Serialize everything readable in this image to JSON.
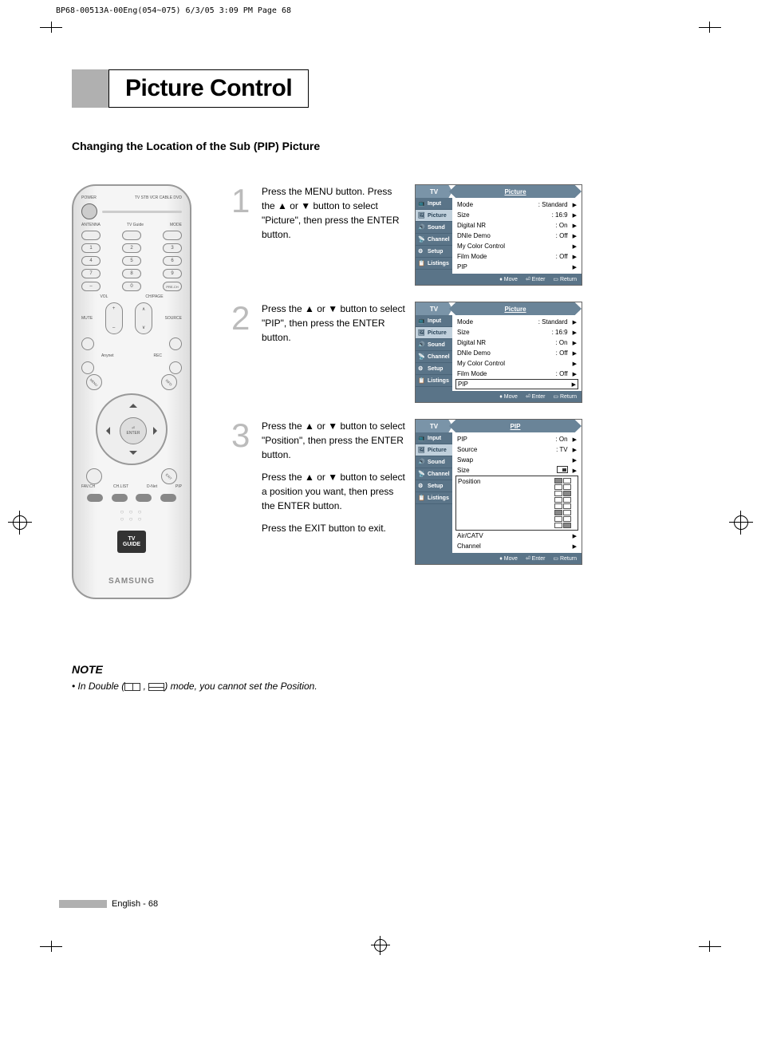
{
  "doc_header": "BP68-00513A-00Eng(054~075)  6/3/05  3:09 PM  Page 68",
  "title": "Picture Control",
  "subtitle": "Changing the Location of the Sub (PIP) Picture",
  "remote": {
    "power_label": "POWER",
    "device_labels": "TV  STB  VCR  CABLE  DVD",
    "row2": {
      "a": "ANTENNA",
      "b": "TV Guide",
      "c": "MODE"
    },
    "nums": [
      "1",
      "2",
      "3",
      "4",
      "5",
      "6",
      "7",
      "8",
      "9",
      "–",
      "0",
      "PRE-CH"
    ],
    "vol": "VOL",
    "ch": "CH/PAGE",
    "mute": "MUTE",
    "source": "SOURCE",
    "anynet": "Anynet",
    "rec": "REC",
    "diag": {
      "menu": "MENU",
      "info": "INFO",
      "exit": "EXIT",
      "last": ""
    },
    "enter": "ENTER",
    "enter_icon": "⏎",
    "color_labels": [
      "FAV.CH",
      "CH.LIST",
      "D-Net",
      "PIP"
    ],
    "tv": "TV",
    "guide": "GUIDE",
    "brand": "SAMSUNG"
  },
  "steps": [
    {
      "num": "1",
      "text1": "Press the MENU button. Press the ▲ or ▼ button to select \"Picture\", then press the ENTER button.",
      "osd": {
        "tv": "TV",
        "title": "Picture",
        "side": [
          "Input",
          "Picture",
          "Sound",
          "Channel",
          "Setup",
          "Listings"
        ],
        "side_sel": 1,
        "rows": [
          {
            "lbl": "Mode",
            "val": ": Standard"
          },
          {
            "lbl": "Size",
            "val": ": 16:9"
          },
          {
            "lbl": "Digital NR",
            "val": ": On"
          },
          {
            "lbl": "DNIe Demo",
            "val": ": Off"
          },
          {
            "lbl": "My Color Control",
            "val": ""
          },
          {
            "lbl": "Film Mode",
            "val": ": Off"
          },
          {
            "lbl": "PIP",
            "val": ""
          }
        ],
        "row_sel": -1,
        "footer": {
          "move": "Move",
          "enter": "Enter",
          "return": "Return"
        }
      }
    },
    {
      "num": "2",
      "text1": "Press the ▲ or ▼ button to select \"PIP\", then press the ENTER button.",
      "osd": {
        "tv": "TV",
        "title": "Picture",
        "side": [
          "Input",
          "Picture",
          "Sound",
          "Channel",
          "Setup",
          "Listings"
        ],
        "side_sel": 1,
        "rows": [
          {
            "lbl": "Mode",
            "val": ": Standard"
          },
          {
            "lbl": "Size",
            "val": ": 16:9"
          },
          {
            "lbl": "Digital NR",
            "val": ": On"
          },
          {
            "lbl": "DNIe Demo",
            "val": ": Off"
          },
          {
            "lbl": "My Color Control",
            "val": ""
          },
          {
            "lbl": "Film Mode",
            "val": ": Off"
          },
          {
            "lbl": "PIP",
            "val": ""
          }
        ],
        "row_sel": 6,
        "footer": {
          "move": "Move",
          "enter": "Enter",
          "return": "Return"
        }
      }
    },
    {
      "num": "3",
      "text1": "Press the ▲ or ▼ button to select \"Position\", then press the ENTER button.",
      "text2": "Press the ▲ or ▼ button to select a position you want, then press the ENTER button.",
      "text3": "Press the EXIT button to exit.",
      "osd": {
        "tv": "TV",
        "title": "PIP",
        "side": [
          "Input",
          "Picture",
          "Sound",
          "Channel",
          "Setup",
          "Listings"
        ],
        "side_sel": 1,
        "rows": [
          {
            "lbl": "PIP",
            "val": ": On"
          },
          {
            "lbl": "Source",
            "val": ": TV"
          },
          {
            "lbl": "Swap",
            "val": ""
          },
          {
            "lbl": "Size",
            "val": "",
            "size": true
          },
          {
            "lbl": "Position",
            "val": "",
            "pos": true,
            "sel": true
          },
          {
            "lbl": "Air/CATV",
            "val": ""
          },
          {
            "lbl": "Channel",
            "val": ""
          }
        ],
        "row_sel": 4,
        "footer": {
          "move": "Move",
          "enter": "Enter",
          "return": "Return"
        }
      }
    }
  ],
  "note": {
    "title": "NOTE",
    "text_pre": "•  In Double (",
    "text_mid": " , ",
    "text_post": ") mode, you cannot set the Position."
  },
  "footer": "English - 68"
}
